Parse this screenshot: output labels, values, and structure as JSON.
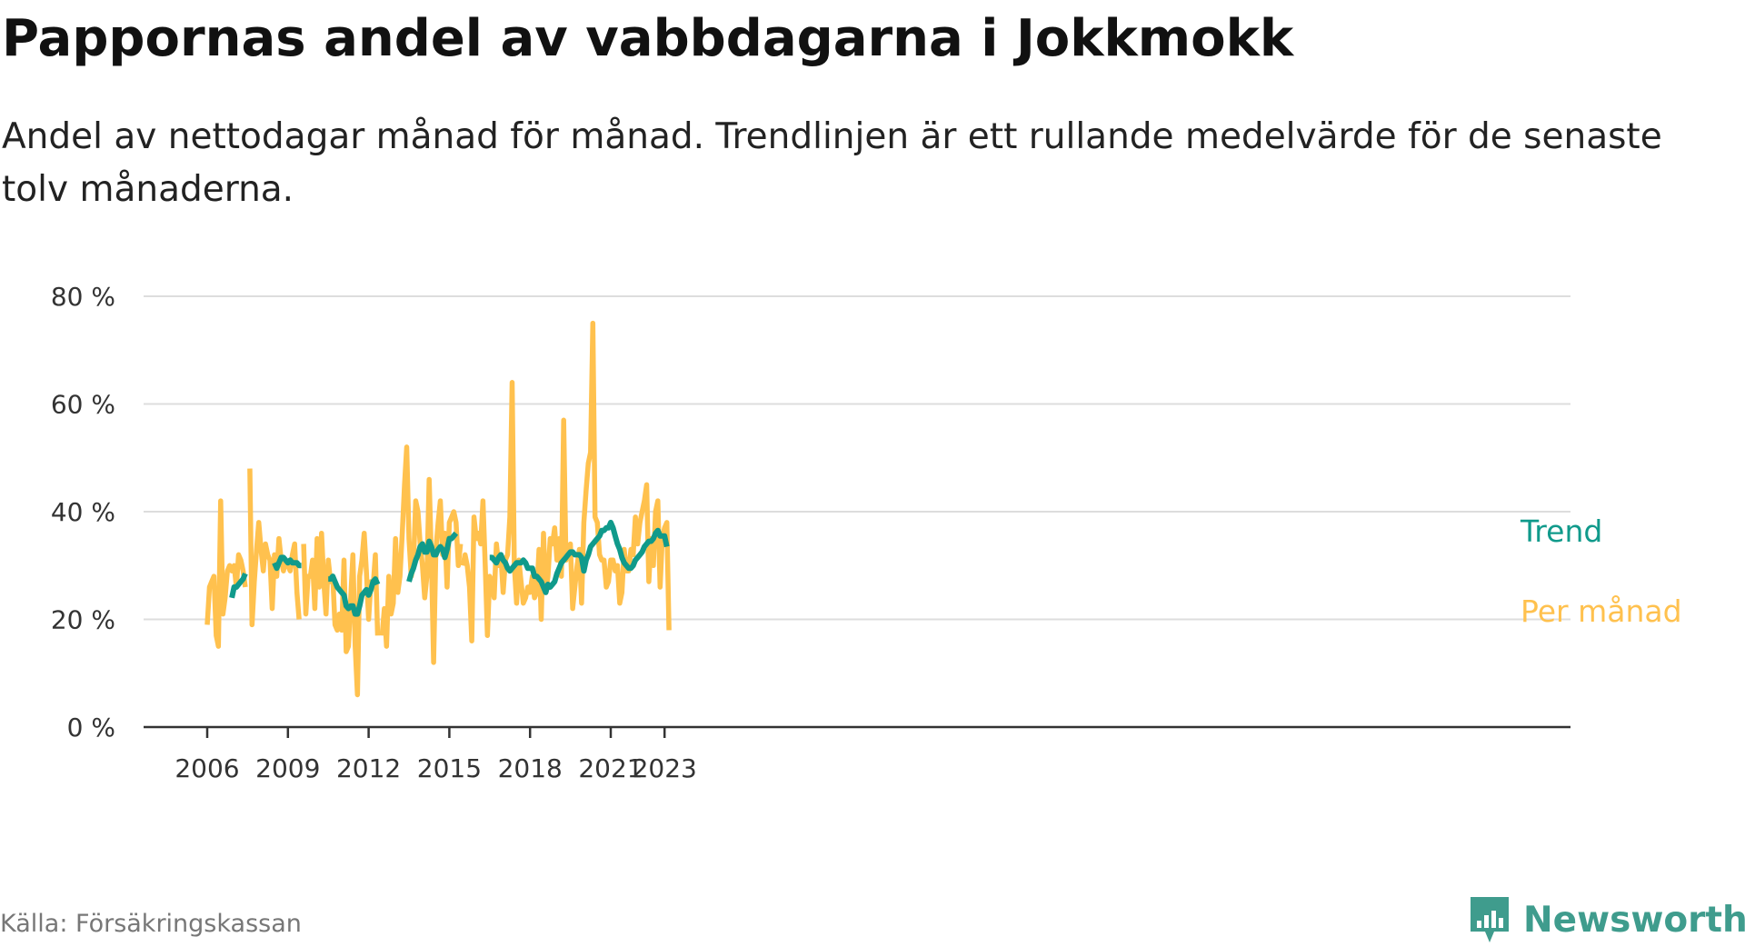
{
  "title": "Pappornas andel av vabbdagarna i Jokkmokk",
  "subtitle": "Andel av nettodagar månad för månad. Trendlinjen är ett rullande medelvärde för de senaste tolv månaderna.",
  "source": "Källa: Försäkringskassan",
  "brand": {
    "name": "Newsworthy",
    "icon": "newsworthy-logo-icon",
    "color": "#3f9c8d"
  },
  "chart_data": {
    "type": "line",
    "y_unit": "%",
    "ylim": [
      0,
      80
    ],
    "y_ticks": [
      0,
      20,
      40,
      60,
      80
    ],
    "y_tick_labels": [
      "0 %",
      "20 %",
      "40 %",
      "60 %",
      "80 %"
    ],
    "xlim": [
      "2006-01",
      "2023-08"
    ],
    "x_ticks": [
      "2006-01",
      "2009-01",
      "2012-01",
      "2015-01",
      "2018-01",
      "2021-01",
      "2023-01"
    ],
    "x_tick_labels": [
      "2006",
      "2009",
      "2012",
      "2015",
      "2018",
      "2021",
      "2023"
    ],
    "grid": "horizontal",
    "legend": "direct labels at the right end of each line",
    "series": [
      {
        "name": "Per månad",
        "color": "#ffc14e",
        "segments": [
          {
            "start": "2006-01",
            "values": [
              19,
              26,
              27,
              28,
              17,
              15,
              42,
              21,
              24,
              29,
              30,
              29,
              30,
              26,
              32,
              31,
              29,
              26
            ]
          },
          {
            "start": "2007-08",
            "values": [
              48,
              19,
              27,
              33,
              38,
              33,
              29,
              34,
              32,
              31,
              22,
              32,
              28,
              35,
              31,
              29,
              31,
              30,
              29,
              32,
              34,
              25,
              20
            ]
          },
          {
            "start": "2009-08",
            "values": [
              34,
              21,
              28,
              28,
              31,
              22,
              35,
              26,
              36,
              27,
              21,
              31,
              27,
              28,
              19,
              18,
              21,
              18,
              31,
              14,
              15,
              24,
              32,
              15,
              6,
              28,
              31,
              36,
              29,
              20,
              27,
              26,
              32,
              17
            ]
          },
          {
            "start": "2012-07",
            "values": [
              17,
              22,
              15,
              28,
              21,
              23,
              35,
              25,
              28,
              36,
              45,
              52,
              35,
              28,
              30,
              42,
              40,
              34,
              30,
              24,
              28,
              46,
              31,
              12,
              33,
              38,
              42,
              32,
              36,
              26,
              38,
              39,
              40,
              38,
              30,
              34
            ]
          },
          {
            "start": "2015-07",
            "values": [
              30,
              32,
              30,
              26,
              16,
              39,
              35,
              36,
              34,
              42,
              30,
              17,
              28,
              27,
              24,
              34,
              30,
              32,
              25,
              31,
              32,
              39,
              64,
              30,
              23,
              31,
              27,
              23,
              24,
              26,
              25,
              28,
              24,
              25,
              33,
              20,
              36,
              25,
              28,
              35,
              34,
              37,
              31,
              35,
              28,
              57,
              31,
              33,
              34,
              22,
              26,
              30,
              33,
              23,
              38,
              44,
              49,
              51,
              75,
              39,
              38,
              32,
              31,
              31,
              26,
              27,
              31,
              31,
              29,
              30,
              23,
              25,
              33,
              29,
              29,
              33,
              32,
              39,
              34,
              38,
              40,
              42,
              45,
              27,
              35,
              30,
              40,
              42,
              26,
              35,
              37,
              38,
              18
            ]
          }
        ]
      },
      {
        "name": "Trend",
        "color": "#109a8b",
        "segments": [
          {
            "start": "2006-12",
            "values": [
              24,
              26,
              26,
              26.5,
              27,
              27.5,
              28.5
            ]
          },
          {
            "start": "2008-07",
            "values": [
              30.5,
              29.5,
              30.5,
              31.5,
              31.5,
              31,
              30.5,
              31,
              30.5,
              30.5,
              30.5,
              30,
              30
            ]
          },
          {
            "start": "2010-07",
            "values": [
              27.5,
              27.5,
              28,
              27,
              26,
              25.5,
              25,
              24.5,
              22.5,
              22,
              22.5,
              22.5,
              21,
              21,
              22.5,
              24.5,
              25,
              25.5,
              24.5,
              25.5,
              27,
              27.5,
              26.5
            ]
          },
          {
            "start": "2013-07",
            "values": [
              27,
              28.5,
              29.5,
              31,
              32,
              33.5,
              34,
              32.5,
              32.5,
              34.5,
              33.5,
              32,
              32,
              33,
              33.5,
              33,
              31.5,
              33,
              35,
              35,
              35.5,
              36
            ]
          },
          {
            "start": "2016-07",
            "values": [
              31.5,
              31.5,
              31,
              30.5,
              31.5,
              32,
              31,
              30.5,
              29.5,
              29,
              29.5,
              30,
              30.5,
              30.5,
              30.5,
              31,
              30.5,
              29.5,
              29.5,
              29.5,
              28,
              28,
              27.5,
              27,
              26,
              25,
              26.5,
              26,
              26.5,
              27,
              28.5,
              29.5,
              30.5,
              31,
              31.5,
              32,
              32.5,
              32.5,
              32,
              32,
              32,
              31.5,
              29,
              31,
              32,
              33.5,
              34,
              34.5,
              35,
              35.5,
              36.5,
              36.5,
              37,
              37,
              38,
              37,
              35.5,
              34,
              33,
              31.5,
              30.5,
              30,
              29.5,
              29.5,
              30,
              31,
              31.5,
              32,
              32.5,
              33.5,
              34,
              34.5,
              34.5,
              35,
              36,
              36.5,
              35.5,
              35.5,
              35.5,
              33.5
            ]
          }
        ]
      }
    ]
  }
}
